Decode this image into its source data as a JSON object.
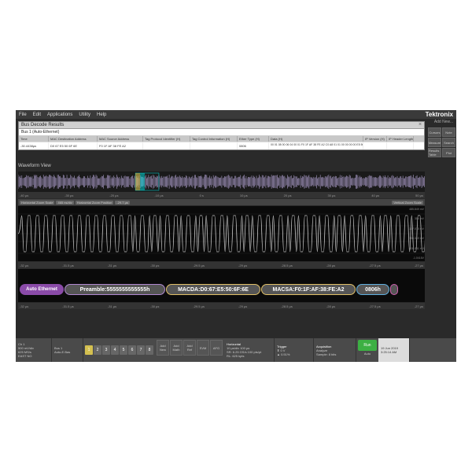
{
  "brand": "Tektronix",
  "addnew": "Add New...",
  "menu": [
    "File",
    "Edit",
    "Applications",
    "Utility",
    "Help"
  ],
  "side": [
    "Cursors",
    "Note",
    "Measure",
    "Search",
    "Results Table",
    "Plot"
  ],
  "panel": {
    "title": "Bus Decode Results",
    "bus": "Bus 1 (Auto-Ethernet)",
    "cols": [
      "Time",
      "MAC Destination Address",
      "MAC Source Address",
      "Tag Protocol Identifier (H)",
      "Tag Control Information (H)",
      "Ether Type (H)",
      "Data (H)",
      "IP Version (H)",
      "IP Header Length"
    ],
    "row": [
      "-30.4438µs",
      "D0 67 E5 50 6F 6E",
      "F0 1F AF 38 FE A2",
      "",
      "",
      "0806",
      "00 01 08 00 06 04 00 01 F0 1F AF 38 FE A2 C0 A8 01 01 00 00 00 00 E5 50 6F 6E C0 A8 01 8B 00 00 00 00 00 00 00 00 00 00 00 00 00 00 00 00 00 00",
      "",
      ""
    ]
  },
  "wvlabel": "Waveform View",
  "time1": [
    "-40 µs",
    "-30 µs",
    "-20 µs",
    "-10 µs",
    "0 s",
    "10 µs",
    "20 µs",
    "30 µs",
    "40 µs",
    "50 µs"
  ],
  "zoom": [
    "Horizontal Zoom Scale",
    "465 ns/div",
    "Horizontal Zoom Position",
    "-29.7 µs",
    "Vertical Zoom Scale"
  ],
  "time2": [
    "-32 µs",
    "-31.5 µs",
    "-31 µs",
    "-30 µs",
    "-29.5 µs",
    "-29 µs",
    "-28.5 µs",
    "-28 µs",
    "-27.5 µs",
    "-27 µs"
  ],
  "yaxis": [
    "485.849 mV",
    "304 mV",
    "107.075 mV",
    "-100.349 mV",
    "-408.811 mV",
    "-1.0416V"
  ],
  "decode": {
    "bus": "Auto Ethernet",
    "preamble": "Preamble:5555555555555h",
    "macda": "MACDA:D0:67:E5:50:6F:6E",
    "macsa": "MACSA:F0:1F:AF:38:FE:A2",
    "type": "0806h"
  },
  "bottom": {
    "ch1": [
      "Ch 1",
      "500 mV/div",
      "625 MS/s",
      "EAST  NO"
    ],
    "bus": [
      "Bus 1",
      "Auto-E.Bas"
    ],
    "ch": [
      "1",
      "2",
      "3",
      "4",
      "5",
      "6",
      "7",
      "8"
    ],
    "add": [
      "Add",
      "New",
      "Add",
      "Math",
      "Add",
      "Ref",
      "SVM",
      "AFG"
    ],
    "horiz": [
      "Horizontal",
      "10 µs/div   100 µs",
      "SR: 6.25 GS/s  100 pts/pt",
      "RL: 625 kpts"
    ],
    "trig": [
      "Trigger",
      "⬆ 0 V",
      "▲ 0.51%"
    ],
    "acq": [
      "Acquisition",
      "Analyze",
      "Sample: 8 bits",
      "1.25 µs mode"
    ],
    "run": "Run",
    "runsub": "Auto",
    "date": [
      "19 Jun 2019",
      "3:25:14 AM"
    ]
  },
  "colors": {
    "bg": "#2a2a2a",
    "wave": "#cccccc",
    "accent_yellow": "#d4c050",
    "accent_cyan": "#00e0e0",
    "pill_purple": "#8a4ba8",
    "pill_border_pre": "#b088d0",
    "pill_border_mac": "#e0c068",
    "pill_border_type": "#60b0e0",
    "run_green": "#3cb043"
  }
}
